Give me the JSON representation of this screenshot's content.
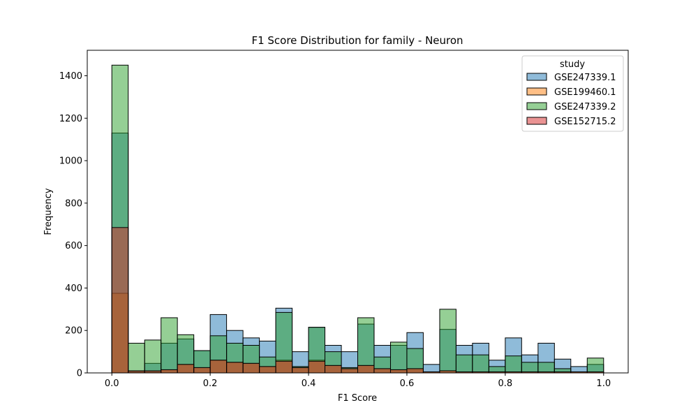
{
  "chart_data": {
    "type": "bar",
    "title": "F1 Score Distribution for family - Neuron",
    "xlabel": "F1 Score",
    "ylabel": "Frequency",
    "xlim": [
      -0.05,
      1.05
    ],
    "ylim": [
      0,
      1520
    ],
    "xticks": [
      0.0,
      0.2,
      0.4,
      0.6,
      0.8,
      1.0
    ],
    "xtick_labels": [
      "0.0",
      "0.2",
      "0.4",
      "0.6",
      "0.8",
      "1.0"
    ],
    "yticks": [
      0,
      200,
      400,
      600,
      800,
      1000,
      1200,
      1400
    ],
    "ytick_labels": [
      "0",
      "200",
      "400",
      "600",
      "800",
      "1000",
      "1200",
      "1400"
    ],
    "bin_edges": [
      0.0,
      0.0333,
      0.0667,
      0.1,
      0.1333,
      0.1667,
      0.2,
      0.2333,
      0.2667,
      0.3,
      0.3333,
      0.3667,
      0.4,
      0.4333,
      0.4667,
      0.5,
      0.5333,
      0.5667,
      0.6,
      0.6333,
      0.6667,
      0.7,
      0.7333,
      0.7667,
      0.8,
      0.8333,
      0.8667,
      0.9,
      0.9333,
      0.9667,
      1.0
    ],
    "legend": {
      "title": "study",
      "position": "top-right"
    },
    "grid": false,
    "series": [
      {
        "name": "GSE247339.1",
        "color": "#1f77b4",
        "values": [
          1130,
          10,
          45,
          140,
          160,
          105,
          275,
          200,
          165,
          150,
          305,
          100,
          215,
          130,
          100,
          230,
          130,
          130,
          190,
          40,
          205,
          130,
          140,
          60,
          165,
          85,
          140,
          65,
          30,
          40
        ]
      },
      {
        "name": "GSE199460.1",
        "color": "#ff7f0e",
        "values": [
          375,
          5,
          5,
          15,
          40,
          25,
          60,
          50,
          45,
          30,
          60,
          25,
          60,
          35,
          20,
          35,
          20,
          15,
          20,
          5,
          10,
          5,
          5,
          5,
          5,
          5,
          5,
          5,
          5,
          5
        ]
      },
      {
        "name": "GSE247339.2",
        "color": "#2ca02c",
        "values": [
          1450,
          140,
          155,
          260,
          180,
          105,
          175,
          140,
          130,
          75,
          285,
          30,
          215,
          100,
          25,
          260,
          75,
          145,
          115,
          5,
          300,
          85,
          85,
          30,
          80,
          50,
          50,
          20,
          5,
          70
        ]
      },
      {
        "name": "GSE152715.2",
        "color": "#d62728",
        "values": [
          685,
          10,
          10,
          15,
          40,
          25,
          60,
          50,
          45,
          30,
          55,
          25,
          55,
          35,
          20,
          35,
          20,
          15,
          20,
          5,
          10,
          5,
          5,
          5,
          5,
          5,
          5,
          5,
          5,
          5
        ]
      }
    ]
  }
}
